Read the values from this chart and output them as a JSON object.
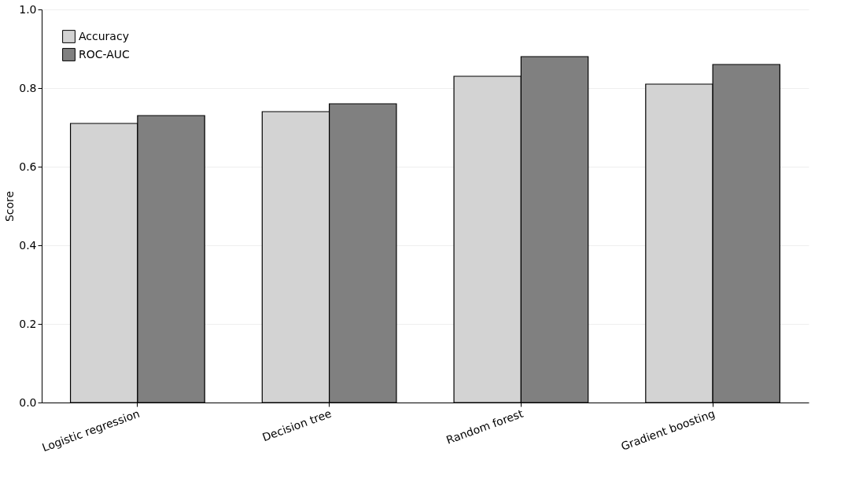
{
  "chart_data": {
    "type": "bar",
    "ylabel": "Score",
    "categories": [
      "Logistic regression",
      "Decision tree",
      "Random forest",
      "Gradient boosting"
    ],
    "series": [
      {
        "name": "Accuracy",
        "color": "#d3d3d3",
        "values": [
          0.71,
          0.74,
          0.83,
          0.81
        ]
      },
      {
        "name": "ROC-AUC",
        "color": "#808080",
        "values": [
          0.73,
          0.76,
          0.88,
          0.86
        ]
      }
    ],
    "ylim": [
      0,
      1.0
    ],
    "yticks": [
      {
        "value": 0,
        "label": "0.0"
      },
      0.2,
      0.4,
      0.6,
      0.8,
      {
        "value": 1,
        "label": "1.0"
      }
    ],
    "grid": "y",
    "legend": "top left"
  }
}
